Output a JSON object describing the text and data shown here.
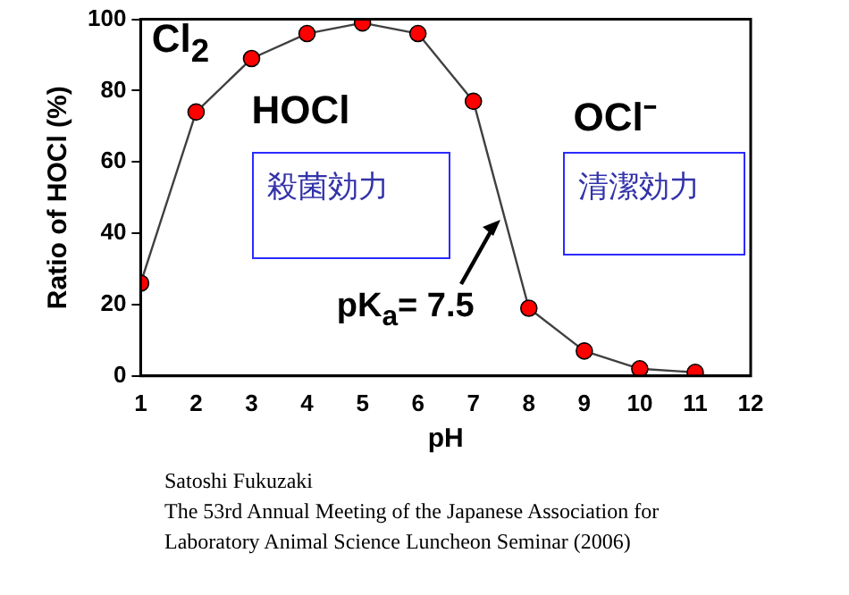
{
  "chart_data": {
    "type": "line",
    "xlabel": "pH",
    "ylabel": "Ratio of HOCl (%)",
    "x": [
      1,
      2,
      3,
      4,
      5,
      6,
      7,
      8,
      9,
      10,
      11
    ],
    "series": [
      {
        "color": "#ff0000",
        "values": [
          26,
          74,
          89,
          96,
          99,
          96,
          77,
          19,
          7,
          2,
          1
        ]
      }
    ],
    "xlim": [
      1,
      12
    ],
    "xticks": [
      1,
      2,
      3,
      4,
      5,
      6,
      7,
      8,
      9,
      10,
      11,
      12
    ],
    "ylim": [
      0,
      100
    ],
    "yticks": [
      0,
      20,
      40,
      60,
      80,
      100
    ],
    "grid": false,
    "legend": false,
    "marker": "circle",
    "line_style": "solid",
    "annotations": [
      "Cl$_{2}$",
      "HOCl",
      "OCl⁻",
      "殺菌効力",
      "清潔効力",
      {
        "text": "pK$_{a}$= 7.5",
        "x": 7.5,
        "y": 44
      },
      "Satoshi  Fukuzaki",
      "The 53rd Annual Meeting of the Japanese Association for",
      "Laboratory Animal Science Luncheon Seminar (2006)"
    ]
  }
}
